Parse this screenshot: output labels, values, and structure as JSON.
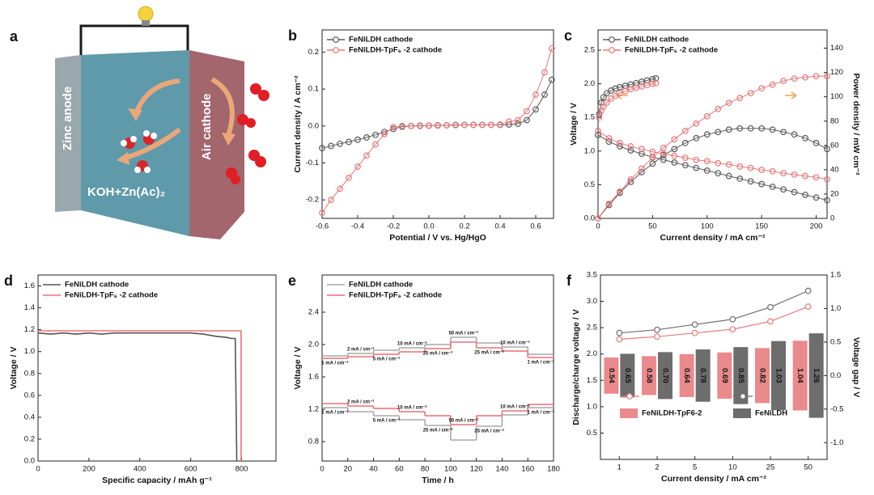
{
  "diagram": {
    "label": "a",
    "anode": "Zinc anode",
    "cathode": "Air cathode",
    "electrolyte": "KOH+Zn(Ac)₂"
  },
  "chart_data": [
    {
      "type": "line",
      "label": "b",
      "xlabel": "Potential / V vs. Hg/HgO",
      "ylabel": "Current density / A cm⁻²",
      "xlim": [
        -0.6,
        0.7
      ],
      "ylim": [
        -0.25,
        0.26
      ],
      "xticks": [
        -0.6,
        -0.4,
        -0.2,
        {
          "value": 0,
          "label": "0.0"
        },
        0.2,
        0.4,
        0.6
      ],
      "yticks": [
        -0.2,
        -0.1,
        {
          "value": 0,
          "label": "0.0"
        },
        0.1,
        0.2
      ],
      "markers": true,
      "legend": "upper left",
      "series": [
        {
          "name": "FeNiLDH cathode",
          "color": "#5a5a5a",
          "x": [
            -0.6,
            -0.55,
            -0.5,
            -0.45,
            -0.4,
            -0.35,
            -0.3,
            -0.25,
            -0.2,
            -0.15,
            -0.1,
            -0.05,
            0,
            0.05,
            0.1,
            0.15,
            0.2,
            0.25,
            0.3,
            0.35,
            0.4,
            0.45,
            0.5,
            0.55,
            0.6,
            0.65,
            0.69
          ],
          "values": [
            -0.06,
            -0.054,
            -0.048,
            -0.043,
            -0.037,
            -0.031,
            -0.024,
            -0.016,
            -0.008,
            -0.002,
            0,
            0.001,
            0.001,
            0.002,
            0.002,
            0.003,
            0.003,
            0.003,
            0.003,
            0.003,
            0.003,
            0.004,
            0.006,
            0.016,
            0.045,
            0.085,
            0.125
          ]
        },
        {
          "name": "FeNiLDH-TpF₆ -2 cathode",
          "color": "#e8787a",
          "x": [
            -0.6,
            -0.55,
            -0.5,
            -0.45,
            -0.4,
            -0.35,
            -0.3,
            -0.25,
            -0.2,
            -0.15,
            -0.1,
            -0.05,
            0,
            0.05,
            0.1,
            0.15,
            0.2,
            0.25,
            0.3,
            0.35,
            0.4,
            0.45,
            0.5,
            0.55,
            0.6,
            0.65,
            0.69
          ],
          "values": [
            -0.235,
            -0.2,
            -0.17,
            -0.14,
            -0.11,
            -0.08,
            -0.05,
            -0.022,
            -0.003,
            0,
            0,
            0,
            0.001,
            0.001,
            0.002,
            0.002,
            0.003,
            0.003,
            0.003,
            0.003,
            0.004,
            0.012,
            0.016,
            0.04,
            0.085,
            0.145,
            0.21
          ]
        }
      ]
    },
    {
      "type": "line",
      "label": "c",
      "xlabel": "Current density / mA cm⁻²",
      "ylabel": "Voltage / V",
      "y2label": "Power density / mW cm⁻²",
      "xlim": [
        0,
        210
      ],
      "ylim": [
        0,
        2.8
      ],
      "y2lim": [
        0,
        155
      ],
      "xticks": [
        0,
        50,
        100,
        150,
        200
      ],
      "yticks": [
        {
          "value": 0,
          "label": "0.0"
        },
        0.5,
        {
          "value": 1,
          "label": "1.0"
        },
        1.5,
        {
          "value": 2,
          "label": "2.0"
        },
        2.5
      ],
      "y2ticks": [
        0,
        20,
        40,
        60,
        80,
        100,
        120,
        140
      ],
      "markers": true,
      "legend": "upper left",
      "series": [
        {
          "name": "FeNiLDH cathode",
          "color": "#5a5a5a",
          "curves": [
            {
              "x": [
                1,
                3,
                5,
                8,
                12,
                16,
                20,
                25,
                30,
                35,
                40,
                45,
                50,
                53
              ],
              "values": [
                1.55,
                1.72,
                1.8,
                1.86,
                1.9,
                1.93,
                1.95,
                1.97,
                1.99,
                2.01,
                2.03,
                2.05,
                2.07,
                2.08
              ]
            },
            {
              "x": [
                0,
                10,
                20,
                30,
                40,
                50,
                60,
                70,
                80,
                90,
                100,
                110,
                120,
                130,
                140,
                150,
                160,
                170,
                180,
                190,
                200,
                210
              ],
              "values": [
                1.24,
                1.14,
                1.07,
                1.01,
                0.96,
                0.91,
                0.87,
                0.83,
                0.79,
                0.75,
                0.71,
                0.67,
                0.63,
                0.59,
                0.55,
                0.51,
                0.47,
                0.43,
                0.39,
                0.35,
                0.31,
                0.27
              ]
            },
            {
              "axis": "y2",
              "x": [
                0,
                10,
                20,
                30,
                40,
                50,
                60,
                70,
                80,
                90,
                100,
                110,
                120,
                130,
                140,
                150,
                160,
                170,
                180,
                190,
                200,
                210
              ],
              "values": [
                0,
                11,
                21,
                30,
                38,
                45,
                52,
                57,
                62,
                66,
                69,
                71,
                73,
                74,
                74,
                74,
                73,
                71,
                69,
                66,
                62,
                57
              ]
            }
          ]
        },
        {
          "name": "FeNiLDH-TpF₆ -2 cathode",
          "color": "#e8787a",
          "curves": [
            {
              "x": [
                1,
                3,
                5,
                8,
                12,
                16,
                20,
                25,
                30,
                35,
                40,
                45,
                50,
                53
              ],
              "values": [
                1.5,
                1.6,
                1.66,
                1.72,
                1.78,
                1.82,
                1.86,
                1.89,
                1.92,
                1.94,
                1.96,
                1.98,
                2.0,
                2.01
              ]
            },
            {
              "x": [
                0,
                10,
                20,
                30,
                40,
                50,
                60,
                70,
                80,
                90,
                100,
                110,
                120,
                130,
                140,
                150,
                160,
                170,
                180,
                190,
                200,
                210
              ],
              "values": [
                1.3,
                1.19,
                1.12,
                1.07,
                1.03,
                0.99,
                0.96,
                0.93,
                0.9,
                0.87,
                0.85,
                0.82,
                0.8,
                0.77,
                0.75,
                0.72,
                0.7,
                0.67,
                0.65,
                0.63,
                0.61,
                0.58
              ]
            },
            {
              "axis": "y2",
              "x": [
                0,
                10,
                20,
                30,
                40,
                50,
                60,
                70,
                80,
                90,
                100,
                110,
                120,
                130,
                140,
                150,
                160,
                170,
                180,
                190,
                200,
                210
              ],
              "values": [
                0,
                12,
                22,
                32,
                41,
                50,
                58,
                65,
                72,
                78,
                84,
                90,
                95,
                99,
                103,
                107,
                110,
                113,
                115,
                116,
                117,
                117
              ]
            }
          ]
        }
      ]
    },
    {
      "type": "line",
      "label": "d",
      "xlabel": "Specific capacity / mAh g⁻¹",
      "ylabel": "Voltage / V",
      "xlim": [
        0,
        935
      ],
      "ylim": [
        0,
        1.7
      ],
      "xticks": [
        0,
        200,
        400,
        600,
        800
      ],
      "yticks": [
        {
          "value": 0,
          "label": "0.0"
        },
        0.2,
        0.4,
        0.6,
        0.8,
        {
          "value": 1,
          "label": "1.0"
        },
        1.2,
        1.4,
        1.6
      ],
      "markers": false,
      "legend": "upper left",
      "series": [
        {
          "name": "FeNiLDH cathode",
          "color": "#555555",
          "x": [
            0,
            50,
            100,
            150,
            200,
            250,
            300,
            350,
            400,
            450,
            500,
            550,
            600,
            650,
            700,
            740,
            760,
            775,
            778,
            781
          ],
          "values": [
            1.17,
            1.16,
            1.17,
            1.16,
            1.17,
            1.16,
            1.17,
            1.17,
            1.17,
            1.17,
            1.17,
            1.17,
            1.17,
            1.16,
            1.14,
            1.13,
            1.12,
            1.12,
            0.6,
            0
          ]
        },
        {
          "name": "FeNiLDH-TpF₆ -2 cathode",
          "color": "#ef6f74",
          "x": [
            0,
            798,
            798
          ],
          "values": [
            1.19,
            1.19,
            0
          ]
        }
      ]
    },
    {
      "type": "step",
      "label": "e",
      "xlabel": "Time / h",
      "ylabel": "Voltage / V",
      "xlim": [
        0,
        180
      ],
      "ylim": [
        0.56,
        2.86
      ],
      "xticks": [
        0,
        20,
        40,
        60,
        80,
        100,
        120,
        140,
        160,
        180
      ],
      "yticks": [
        0.8,
        1.2,
        1.6,
        {
          "value": 2,
          "label": "2.0"
        },
        2.4
      ],
      "legend": "upper left",
      "x": [
        0,
        20,
        40,
        60,
        80,
        100,
        120,
        140,
        160
      ],
      "step_labels": [
        "1 mA / cm⁻²",
        "2 mA / cm⁻²",
        "5 mA / cm⁻²",
        "10 mA / cm⁻²",
        "25 mA / cm⁻²",
        "50 mA / cm⁻²",
        "25 mA / cm⁻²",
        "10 mA / cm⁻²",
        "1 mA / cm⁻²"
      ],
      "series": [
        {
          "name": "FeNiLDH cathode",
          "color": "#a8a8a8",
          "values": [
            1.86,
            1.89,
            1.93,
            1.96,
            2.0,
            2.09,
            2.02,
            1.97,
            1.88
          ],
          "discharge": [
            1.22,
            1.17,
            1.12,
            1.07,
            1.0,
            0.82,
            0.99,
            1.13,
            1.22
          ]
        },
        {
          "name": "FeNiLDH-TpF₆ -2 cathode",
          "color": "#ec6f73",
          "values": [
            1.83,
            1.85,
            1.88,
            1.91,
            1.95,
            2.03,
            1.96,
            1.92,
            1.84
          ],
          "discharge": [
            1.27,
            1.24,
            1.21,
            1.17,
            1.12,
            1.01,
            1.12,
            1.18,
            1.26
          ]
        }
      ]
    },
    {
      "type": "combo",
      "label": "f",
      "xlabel": "Current density / mA cm⁻²",
      "ylabel": "Discharge/charge voltage / V",
      "y2label": "Voltage gap / V",
      "categories": [
        "1",
        "2",
        "5",
        "10",
        "25",
        "50"
      ],
      "ylim": [
        0,
        3.5
      ],
      "y2lim": [
        -1.25,
        1.5
      ],
      "yticks": [
        0.5,
        {
          "value": 1,
          "label": "1.0"
        },
        1.5,
        {
          "value": 2,
          "label": "2.0"
        },
        2.5,
        {
          "value": 3,
          "label": "3.0"
        },
        3.5
      ],
      "y2ticks": [
        {
          "value": -1,
          "label": "-1.0"
        },
        -0.5,
        {
          "value": 0,
          "label": "0.0"
        },
        0.5,
        {
          "value": 1,
          "label": "1.0"
        },
        1.5
      ],
      "series": [
        {
          "kind": "line",
          "color": "#e8787a",
          "values": [
            2.28,
            2.33,
            2.4,
            2.47,
            2.62,
            2.9
          ]
        },
        {
          "kind": "line",
          "color": "#6d6d6d",
          "values": [
            2.4,
            2.46,
            2.56,
            2.66,
            2.89,
            3.2
          ]
        },
        {
          "kind": "bar",
          "axis": "y2",
          "name": "FeNiLDH-TpF6-2",
          "color": "#ea8a8c",
          "values": [
            0.54,
            0.58,
            0.64,
            0.69,
            0.82,
            1.04
          ],
          "value_labels": [
            "0.54",
            "0.58",
            "0.64",
            "0.69",
            "0.82",
            "1.04"
          ]
        },
        {
          "kind": "bar",
          "axis": "y2",
          "name": "FeNiLDH",
          "color": "#6d6d6d",
          "values": [
            0.65,
            0.7,
            0.78,
            0.85,
            1.03,
            1.26
          ],
          "value_labels": [
            "0.65",
            "0.70",
            "0.78",
            "0.85",
            "1.03",
            "1.26"
          ]
        }
      ]
    }
  ]
}
